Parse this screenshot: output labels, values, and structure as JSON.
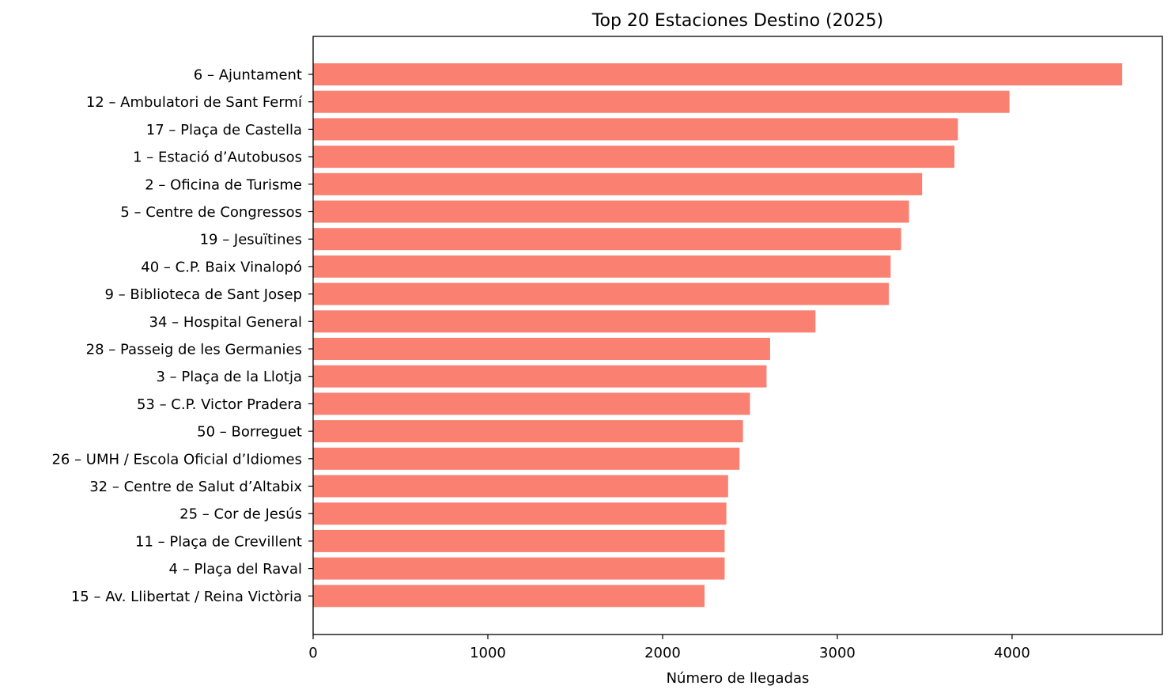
{
  "chart_data": {
    "type": "bar",
    "orientation": "horizontal",
    "title": "Top 20 Estaciones Destino (2025)",
    "xlabel": "Número de llegadas",
    "ylabel": "",
    "xlim": [
      0,
      4860
    ],
    "xticks": [
      0,
      1000,
      2000,
      3000,
      4000
    ],
    "bar_color": "#fa8072",
    "grid": false,
    "categories": [
      "6 – Ajuntament",
      "12 – Ambulatori de Sant Fermí",
      "17 – Plaça de Castella",
      "1 – Estació d’Autobusos",
      "2 – Oficina de Turisme",
      "5 – Centre de Congressos",
      "19 – Jesuïtines",
      "40 – C.P. Baix Vinalopó",
      "9 – Biblioteca de Sant Josep",
      "34 – Hospital General",
      "28 – Passeig de les Germanies",
      "3 – Plaça de la Llotja",
      "53 – C.P. Victor Pradera",
      "50 – Borreguet",
      "26 – UMH / Escola Oficial d’Idiomes",
      "32 – Centre de Salut d’Altabix",
      "25 – Cor de Jesús",
      "11 – Plaça de Crevillent",
      "4 – Plaça del Raval",
      "15 – Av. Llibertat / Reina Victòria"
    ],
    "values": [
      4630,
      3985,
      3690,
      3670,
      3485,
      3410,
      3365,
      3305,
      3295,
      2875,
      2615,
      2595,
      2500,
      2460,
      2440,
      2375,
      2365,
      2355,
      2355,
      2240
    ]
  }
}
